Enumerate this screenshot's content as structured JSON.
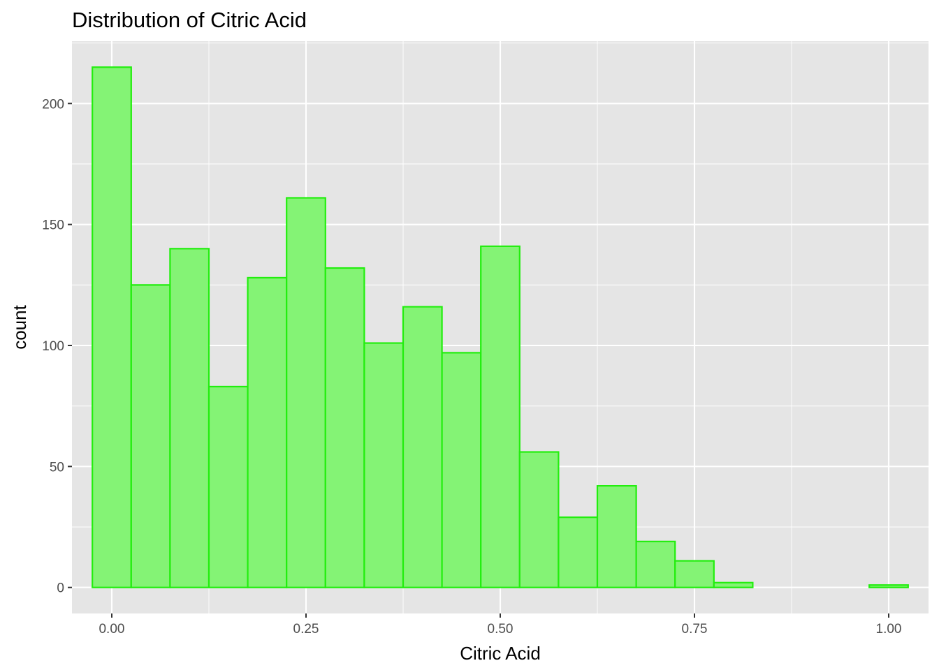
{
  "chart_data": {
    "type": "bar",
    "title": "Distribution of Citric Acid",
    "xlabel": "Citric Acid",
    "ylabel": "count",
    "bin_width": 0.05,
    "x_range": [
      -0.05125,
      1.05125
    ],
    "ylim": [
      -10.75,
      225.75
    ],
    "x_ticks": [
      {
        "value": 0.0,
        "label": "0.00"
      },
      {
        "value": 0.25,
        "label": "0.25"
      },
      {
        "value": 0.5,
        "label": "0.50"
      },
      {
        "value": 0.75,
        "label": "0.75"
      },
      {
        "value": 1.0,
        "label": "1.00"
      }
    ],
    "y_ticks": [
      {
        "value": 0,
        "label": "0"
      },
      {
        "value": 50,
        "label": "50"
      },
      {
        "value": 100,
        "label": "100"
      },
      {
        "value": 150,
        "label": "150"
      },
      {
        "value": 200,
        "label": "200"
      }
    ],
    "bins": [
      {
        "center": 0.0,
        "count": 215
      },
      {
        "center": 0.05,
        "count": 125
      },
      {
        "center": 0.1,
        "count": 140
      },
      {
        "center": 0.15,
        "count": 83
      },
      {
        "center": 0.2,
        "count": 128
      },
      {
        "center": 0.25,
        "count": 161
      },
      {
        "center": 0.3,
        "count": 132
      },
      {
        "center": 0.35,
        "count": 101
      },
      {
        "center": 0.4,
        "count": 116
      },
      {
        "center": 0.45,
        "count": 97
      },
      {
        "center": 0.5,
        "count": 141
      },
      {
        "center": 0.55,
        "count": 56
      },
      {
        "center": 0.6,
        "count": 29
      },
      {
        "center": 0.65,
        "count": 42
      },
      {
        "center": 0.7,
        "count": 19
      },
      {
        "center": 0.75,
        "count": 11
      },
      {
        "center": 0.8,
        "count": 2
      },
      {
        "center": 0.85,
        "count": 0
      },
      {
        "center": 0.9,
        "count": 0
      },
      {
        "center": 0.95,
        "count": 0
      },
      {
        "center": 1.0,
        "count": 1
      }
    ],
    "grid": true,
    "colors": {
      "bar_fill": "#84f375",
      "bar_stroke": "#22ee0e",
      "panel": "#e5e5e5",
      "grid": "#ffffff"
    }
  }
}
